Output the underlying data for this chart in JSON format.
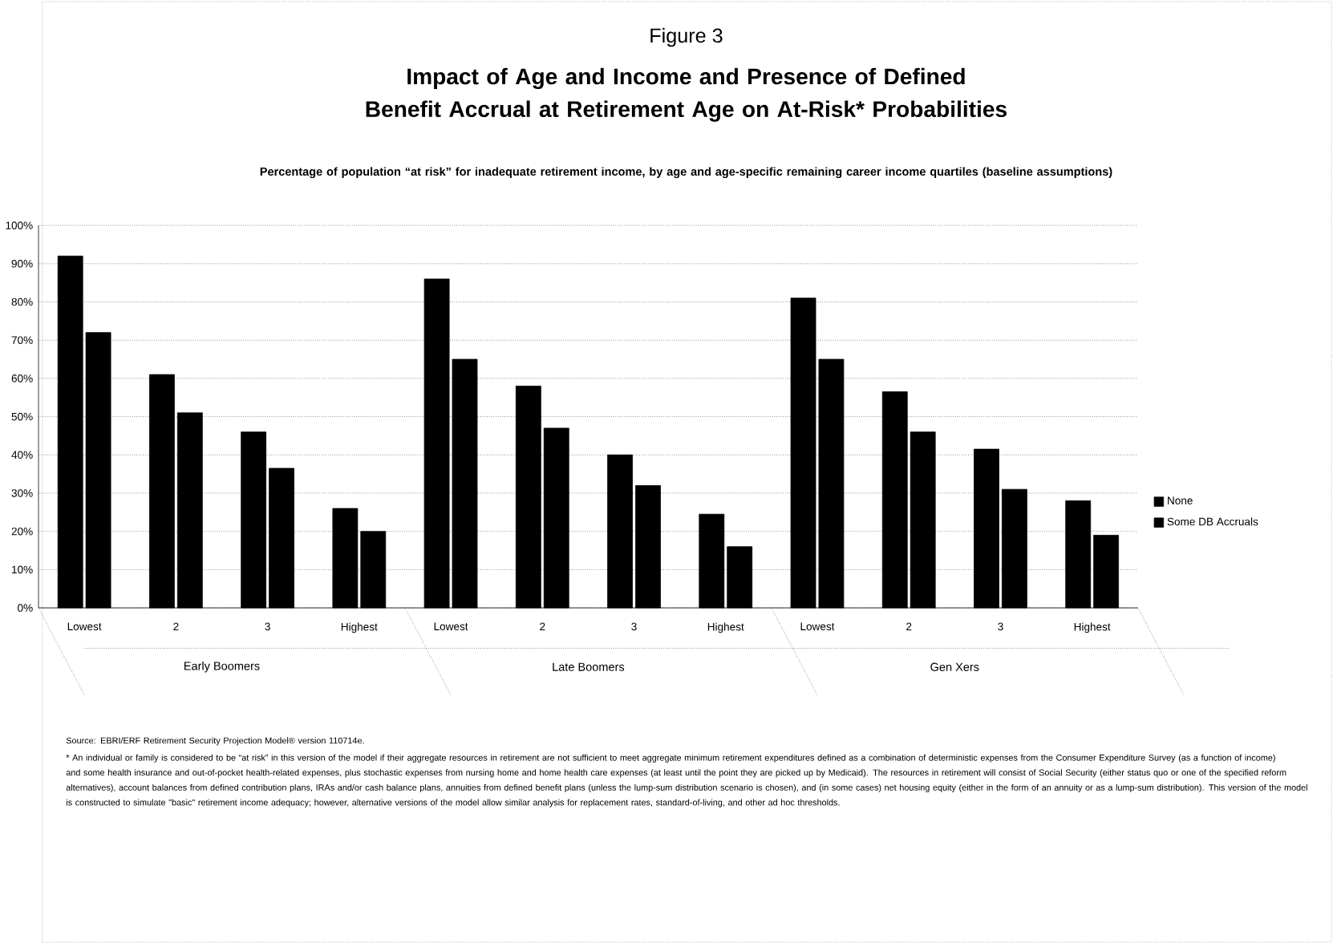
{
  "chart_data": {
    "type": "bar",
    "title": "Impact of Age and Income and Presence of Defined Benefit Accrual at Retirement Age on At-Risk* Probabilities",
    "subtitle": "Figure 3",
    "annotations": [
      "Early Boomers",
      "Late Boomers",
      "Gen Xers",
      "Percentage of population “at risk” for inadequate retirement income, by age and age-specific remaining career income quartiles (baseline assumptions)",
      "Source: EBRI/ERF Retirement Security Projection Model® version 110714e.",
      "* An individual or family is considered to be “at risk” in this version of the model if their aggregate resources in retirement are not sufficient to meet aggregate minimum retirement expenditures defined as a combination of deterministic expenses from the Consumer Expenditure Survey (as a function of income) and some health insurance and out-of-pocket health-related expenses, plus stochastic expenses from nursing home and home health care expenses (at least until the point they are picked up by Medicaid). The resources in retirement will consist of Social Security (either status quo or one of the specified reform alternatives), account balances from defined contribution plans, IRAs and/or cash balance plans, annuities from defined benefit plans (unless the lump-sum distribution scenario is chosen), and (in some cases) net housing equity (either in the form of an annuity or as a lump-sum distribution).  This version of the model is constructed to simulate \"basic\" retirement income adequacy; however, alternative versions of the model allow similar analysis for replacement rates, standard-of-living, and other ad hoc thresholds."
    ],
    "categories": [
      "Lowest",
      "2",
      "3",
      "Highest",
      "Lowest",
      "2",
      "3",
      "Highest",
      "Lowest",
      "2",
      "3",
      "Highest"
    ],
    "series": [
      {
        "name": "None",
        "color": "#000000",
        "values": [
          92,
          61,
          46,
          26,
          86,
          58,
          40,
          24.5,
          81,
          56.5,
          41.5,
          28
        ]
      },
      {
        "name": "Some DB Accruals",
        "color": "#000000",
        "values": [
          72,
          51,
          36.5,
          20,
          65,
          47,
          32,
          16,
          65,
          46,
          31,
          19
        ]
      }
    ],
    "ylim": [
      0,
      100
    ],
    "yticks": [
      {
        "value": 0,
        "label": "0%"
      },
      {
        "value": 10,
        "label": "10%"
      },
      {
        "value": 20,
        "label": "20%"
      },
      {
        "value": 30,
        "label": "30%"
      },
      {
        "value": 40,
        "label": "40%"
      },
      {
        "value": 50,
        "label": "50%"
      },
      {
        "value": 60,
        "label": "60%"
      },
      {
        "value": 70,
        "label": "70%"
      },
      {
        "value": 80,
        "label": "80%"
      },
      {
        "value": 90,
        "label": "90%"
      },
      {
        "value": 100,
        "label": "100%"
      }
    ],
    "grid": "y",
    "legend": "right"
  }
}
